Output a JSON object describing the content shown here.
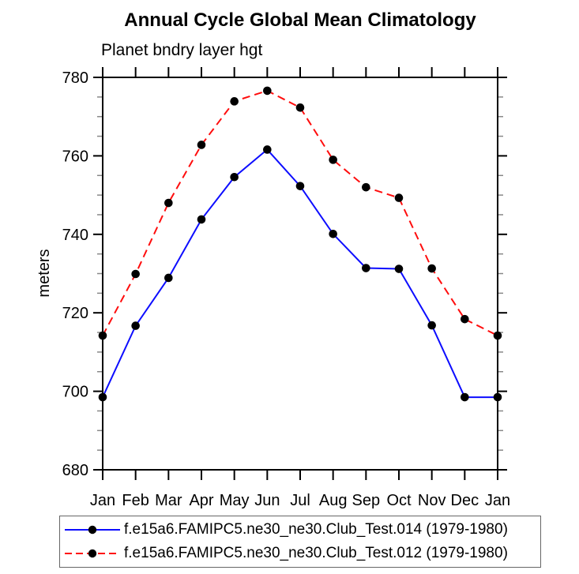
{
  "chart_data": {
    "type": "line",
    "title": "Annual Cycle Global Mean Climatology",
    "subtitle": "Planet bndry layer hgt",
    "xlabel": "",
    "ylabel": "meters",
    "ylim": [
      680,
      780
    ],
    "y_major_step": 20,
    "y_minor_step": 5,
    "y_major_ticks": [
      680,
      700,
      720,
      740,
      760,
      780
    ],
    "grid": false,
    "legend_position": "bottom",
    "categories": [
      "Jan",
      "Feb",
      "Mar",
      "Apr",
      "May",
      "Jun",
      "Jul",
      "Aug",
      "Sep",
      "Oct",
      "Nov",
      "Dec",
      "Jan"
    ],
    "series": [
      {
        "name": "f.e15a6.FAMIPC5.ne30_ne30.Club_Test.014 (1979-1980)",
        "color": "#0d0dff",
        "line_style": "solid",
        "marker": "circle",
        "marker_color": "#000000",
        "values": [
          698.5,
          716.7,
          728.9,
          743.8,
          754.6,
          761.6,
          752.3,
          740.1,
          731.4,
          731.2,
          716.8,
          698.5,
          698.5
        ]
      },
      {
        "name": "f.e15a6.FAMIPC5.ne30_ne30.Club_Test.012 (1979-1980)",
        "color": "#ff0d0d",
        "line_style": "dashed",
        "marker": "circle",
        "marker_color": "#000000",
        "values": [
          714.2,
          729.9,
          748.0,
          762.8,
          773.9,
          776.6,
          772.3,
          759.0,
          752.0,
          749.3,
          731.3,
          718.4,
          714.2
        ]
      }
    ]
  }
}
